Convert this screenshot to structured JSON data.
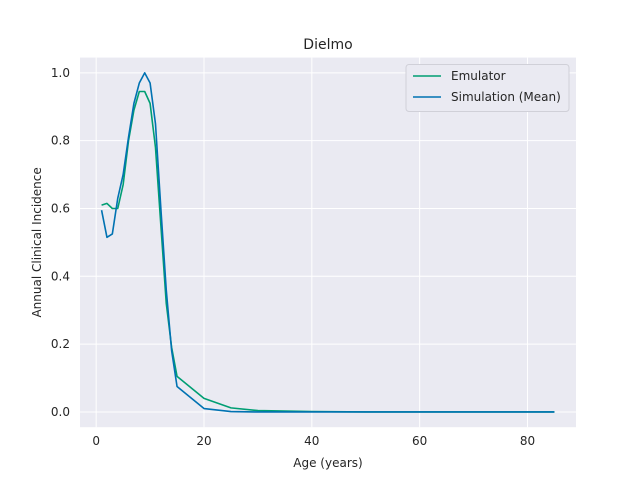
{
  "chart_data": {
    "type": "line",
    "title": "Dielmo",
    "xlabel": "Age (years)",
    "ylabel": "Annual Clinical Incidence",
    "xlim": [
      -3,
      89
    ],
    "ylim": [
      -0.045,
      1.045
    ],
    "xticks": [
      0,
      20,
      40,
      60,
      80
    ],
    "xtick_labels": [
      "0",
      "20",
      "40",
      "60",
      "80"
    ],
    "yticks": [
      0.0,
      0.2,
      0.4,
      0.6,
      0.8,
      1.0
    ],
    "ytick_labels": [
      "0.0",
      "0.2",
      "0.4",
      "0.6",
      "0.8",
      "1.0"
    ],
    "grid": true,
    "legend_position": "top-right",
    "series": [
      {
        "name": "Emulator",
        "color": "#009e73",
        "x": [
          1,
          2,
          3,
          4,
          5,
          6,
          7,
          8,
          9,
          10,
          11,
          12,
          13,
          14,
          15,
          20,
          25,
          30,
          40,
          50,
          60,
          70,
          80,
          85
        ],
        "y": [
          0.61,
          0.615,
          0.6,
          0.6,
          0.67,
          0.8,
          0.89,
          0.945,
          0.945,
          0.91,
          0.78,
          0.55,
          0.32,
          0.19,
          0.105,
          0.04,
          0.012,
          0.004,
          0.001,
          0.0,
          0.0,
          0.0,
          0.0,
          0.0
        ]
      },
      {
        "name": "Simulation (Mean)",
        "color": "#0072b2",
        "x": [
          1,
          2,
          3,
          4,
          5,
          6,
          7,
          8,
          9,
          10,
          11,
          12,
          13,
          14,
          15,
          20,
          25,
          30,
          40,
          50,
          60,
          70,
          80,
          85
        ],
        "y": [
          0.595,
          0.515,
          0.525,
          0.63,
          0.7,
          0.81,
          0.91,
          0.97,
          1.0,
          0.97,
          0.85,
          0.6,
          0.36,
          0.18,
          0.075,
          0.01,
          0.001,
          0.0,
          0.0,
          0.0,
          0.0,
          0.0,
          0.0,
          0.0
        ]
      }
    ]
  }
}
